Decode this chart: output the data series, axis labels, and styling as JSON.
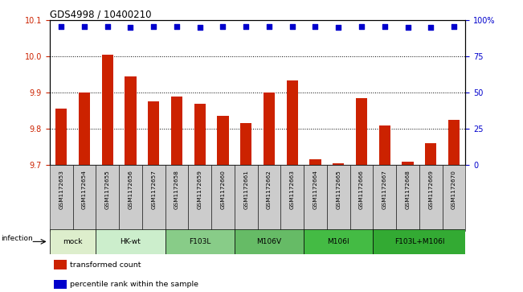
{
  "title": "GDS4998 / 10400210",
  "samples": [
    "GSM1172653",
    "GSM1172654",
    "GSM1172655",
    "GSM1172656",
    "GSM1172657",
    "GSM1172658",
    "GSM1172659",
    "GSM1172660",
    "GSM1172661",
    "GSM1172662",
    "GSM1172663",
    "GSM1172664",
    "GSM1172665",
    "GSM1172666",
    "GSM1172667",
    "GSM1172668",
    "GSM1172669",
    "GSM1172670"
  ],
  "bar_values": [
    9.855,
    9.9,
    10.005,
    9.945,
    9.875,
    9.89,
    9.87,
    9.835,
    9.815,
    9.9,
    9.935,
    9.715,
    9.705,
    9.885,
    9.81,
    9.71,
    9.76,
    9.825
  ],
  "percentile_values": [
    96,
    96,
    96,
    95,
    96,
    96,
    95,
    96,
    96,
    96,
    96,
    96,
    95,
    96,
    96,
    95,
    95,
    96
  ],
  "bar_color": "#cc2200",
  "percentile_color": "#0000cc",
  "ylim_left": [
    9.7,
    10.1
  ],
  "ylim_right": [
    0,
    100
  ],
  "yticks_left": [
    9.7,
    9.8,
    9.9,
    10.0,
    10.1
  ],
  "yticks_right": [
    0,
    25,
    50,
    75,
    100
  ],
  "ytick_labels_right": [
    "0",
    "25",
    "50",
    "75",
    "100%"
  ],
  "groups": [
    {
      "label": "mock",
      "start": 0,
      "end": 1,
      "color": "#ddeecc"
    },
    {
      "label": "HK-wt",
      "start": 2,
      "end": 4,
      "color": "#cceecc"
    },
    {
      "label": "F103L",
      "start": 5,
      "end": 7,
      "color": "#88cc88"
    },
    {
      "label": "M106V",
      "start": 8,
      "end": 10,
      "color": "#66bb66"
    },
    {
      "label": "M106I",
      "start": 11,
      "end": 13,
      "color": "#44bb44"
    },
    {
      "label": "F103L+M106I",
      "start": 14,
      "end": 17,
      "color": "#33aa33"
    }
  ],
  "infection_label": "infection",
  "legend_items": [
    {
      "color": "#cc2200",
      "label": "transformed count"
    },
    {
      "color": "#0000cc",
      "label": "percentile rank within the sample"
    }
  ],
  "sample_cell_color": "#cccccc",
  "background_color": "#ffffff"
}
